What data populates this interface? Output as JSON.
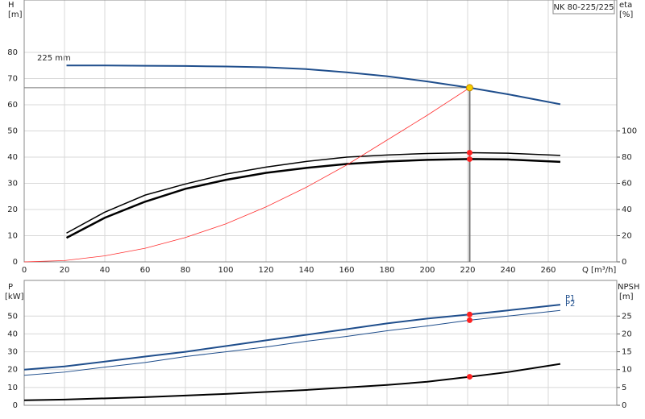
{
  "chart_data": [
    {
      "type": "line",
      "title": "NK 80-225/225",
      "annotation": "225 mm",
      "x_label": "Q [m³/h]",
      "y_label": "H",
      "y_unit": "[m]",
      "y2_label": "eta",
      "y2_unit": "[%]",
      "xlim": [
        0,
        294
      ],
      "xticks": [
        0,
        20,
        40,
        60,
        80,
        100,
        120,
        140,
        160,
        180,
        200,
        220,
        240,
        260
      ],
      "ylim": [
        0,
        100
      ],
      "yticks": [
        0,
        10,
        20,
        30,
        40,
        50,
        60,
        70,
        80
      ],
      "y2lim": [
        0,
        200
      ],
      "y2ticks": [
        0,
        20,
        40,
        60,
        80,
        100
      ],
      "grid": true,
      "duty_point": {
        "q": 221,
        "h": 66.5,
        "color": "#f5d000"
      },
      "series": [
        {
          "color": "#1f4e8c",
          "line_width": 2,
          "x": [
            21,
            40,
            60,
            80,
            100,
            120,
            140,
            160,
            180,
            200,
            221,
            240,
            266
          ],
          "values": [
            75,
            75,
            74.9,
            74.8,
            74.6,
            74.3,
            73.6,
            72.4,
            70.9,
            68.9,
            66.5,
            64,
            60.2
          ]
        },
        {
          "color": "#000000",
          "line_width": 1.5,
          "axis": "y2",
          "marker_color": "#ff2020",
          "x": [
            21,
            40,
            60,
            80,
            100,
            120,
            140,
            160,
            180,
            200,
            221,
            240,
            266
          ],
          "values": [
            22,
            38,
            51,
            59.5,
            67,
            72.4,
            76.7,
            80,
            81.6,
            82.8,
            83.4,
            83,
            81.3
          ]
        },
        {
          "color": "#000000",
          "line_width": 2.5,
          "axis": "y2",
          "marker_color": "#ff2020",
          "x": [
            21,
            40,
            60,
            80,
            100,
            120,
            140,
            160,
            180,
            200,
            221,
            240,
            266
          ],
          "values": [
            18.4,
            33.7,
            46,
            55.8,
            62.6,
            68,
            71.8,
            74.8,
            76.7,
            77.9,
            78.5,
            78.2,
            76.4
          ]
        },
        {
          "color": "#ff3030",
          "line_width": 0.8,
          "x": [
            0,
            20,
            40,
            60,
            80,
            100,
            120,
            140,
            160,
            180,
            200,
            221
          ],
          "values": [
            0,
            0.5,
            2.3,
            5.2,
            9.3,
            14.5,
            21,
            28.5,
            37,
            46.5,
            56,
            66.5
          ]
        }
      ]
    },
    {
      "type": "line",
      "y_label": "P",
      "y_unit": "[kW]",
      "y2_label": "NPSH",
      "y2_unit": "[m]",
      "xlim": [
        0,
        294
      ],
      "ylim": [
        0,
        70
      ],
      "yticks": [
        0,
        10,
        20,
        30,
        40,
        50
      ],
      "y2lim": [
        0,
        35
      ],
      "y2ticks": [
        0,
        5,
        10,
        15,
        20,
        25
      ],
      "grid": true,
      "series": [
        {
          "name": "P1",
          "color": "#1f4e8c",
          "line_width": 2,
          "marker_color": "#ff2020",
          "x": [
            0,
            20,
            40,
            60,
            80,
            100,
            120,
            140,
            160,
            180,
            200,
            221,
            240,
            266
          ],
          "values": [
            20,
            21.8,
            24.5,
            27.3,
            30,
            33.2,
            36.4,
            39.5,
            42.7,
            45.9,
            48.6,
            50.9,
            53.2,
            56.4
          ]
        },
        {
          "name": "P2",
          "color": "#1f4e8c",
          "line_width": 1,
          "marker_color": "#ff2020",
          "x": [
            0,
            20,
            40,
            60,
            80,
            100,
            120,
            140,
            160,
            180,
            200,
            221,
            240,
            266
          ],
          "values": [
            16.8,
            18.6,
            21.4,
            24,
            27.3,
            30,
            32.7,
            35.9,
            38.6,
            41.8,
            44.5,
            47.7,
            50,
            53.2
          ]
        },
        {
          "color": "#000000",
          "line_width": 2,
          "axis": "y2",
          "marker_color": "#ff2020",
          "x": [
            0,
            20,
            60,
            100,
            140,
            180,
            200,
            221,
            240,
            266
          ],
          "values": [
            1.4,
            1.6,
            2.3,
            3.2,
            4.3,
            5.7,
            6.6,
            8,
            9.3,
            11.6
          ]
        }
      ]
    }
  ]
}
